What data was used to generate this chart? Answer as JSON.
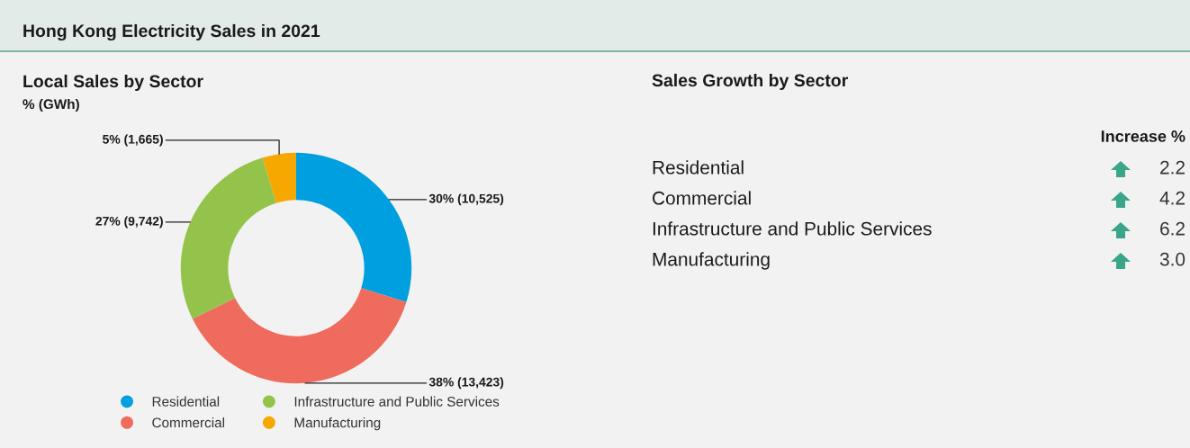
{
  "chart_data": [
    {
      "type": "donut",
      "title": "Hong Kong Electricity Sales in 2021",
      "subtitle": "Local Sales by Sector",
      "annotations": [
        "% (GWh)"
      ],
      "categories": [
        "Residential",
        "Commercial",
        "Infrastructure and Public Services",
        "Manufacturing"
      ],
      "values": [
        10525,
        13423,
        9742,
        1665
      ],
      "value_labels": [
        "30% (10,525)",
        "38% (13,423)",
        "27% (9,742)",
        "5% (1,665)"
      ],
      "colors": [
        "#009fdf",
        "#ee6b5d",
        "#93c34a",
        "#f6a800"
      ],
      "legend": "bottom"
    },
    {
      "type": "other",
      "title": "Sales Growth by Sector",
      "annotations": [
        "Increase %"
      ],
      "categories": [
        "Residential",
        "Commercial",
        "Infrastructure and Public Services",
        "Manufacturing"
      ],
      "values": [
        2.2,
        4.2,
        6.2,
        3.0
      ],
      "value_labels": [
        "2.2",
        "4.2",
        "6.2",
        "3.0"
      ],
      "color": "#3aa58a"
    }
  ]
}
